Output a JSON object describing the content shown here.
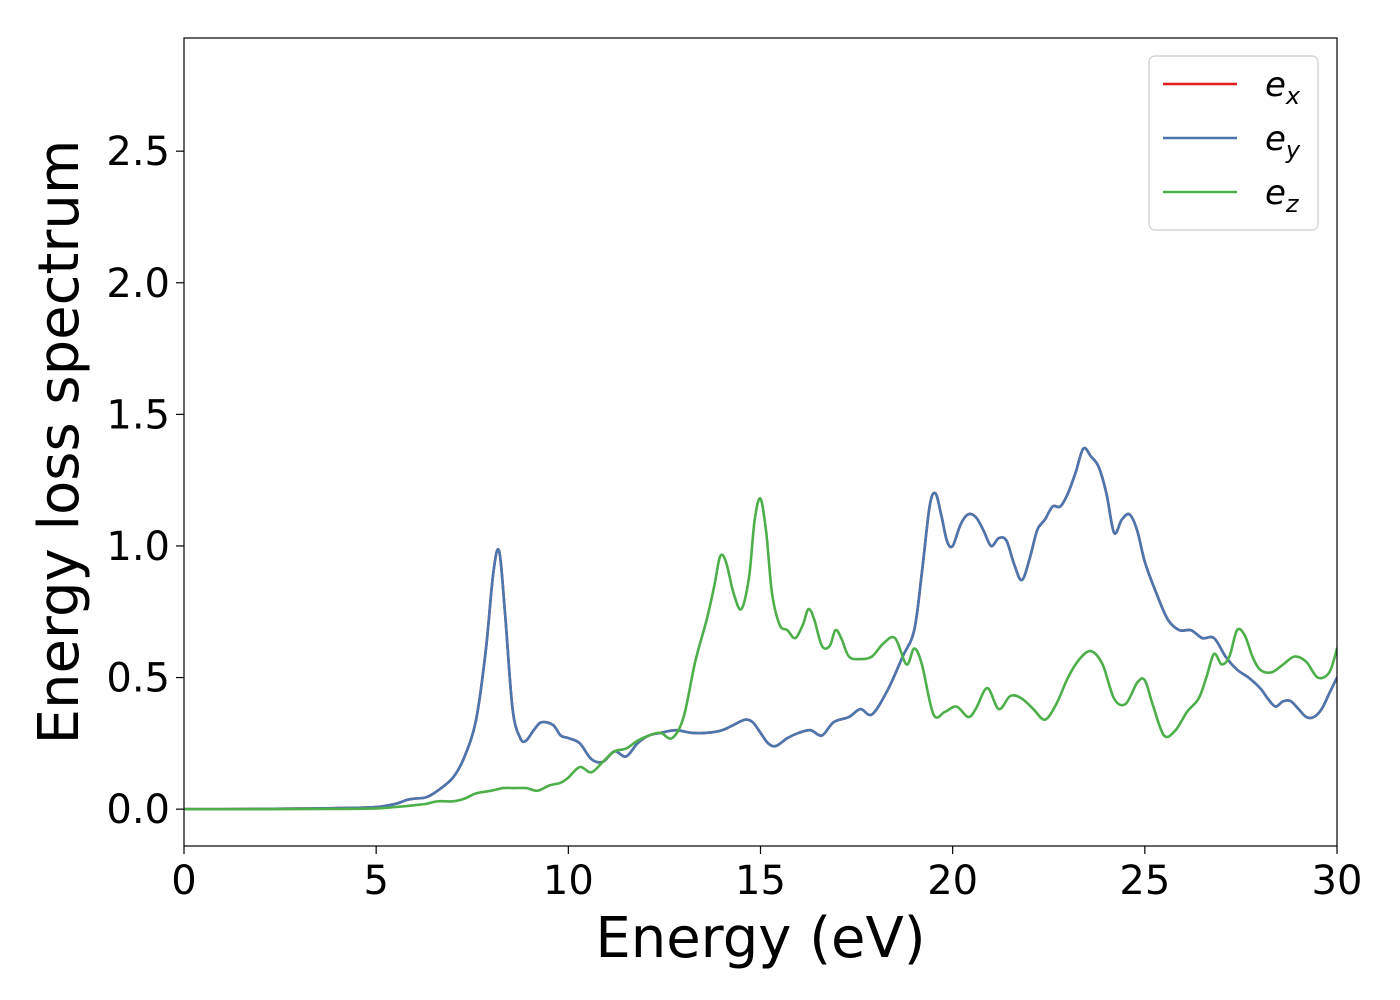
{
  "chart_data": {
    "type": "line",
    "title": "",
    "xlabel": "Energy (eV)",
    "ylabel": "Energy loss spectrum",
    "xlim": [
      0,
      30
    ],
    "ylim": [
      -0.14,
      2.93
    ],
    "xticks": [
      0,
      5,
      10,
      15,
      20,
      25,
      30
    ],
    "yticks": [
      0.0,
      0.5,
      1.0,
      1.5,
      2.0,
      2.5
    ],
    "xtick_labels": [
      "0",
      "5",
      "10",
      "15",
      "20",
      "25",
      "30"
    ],
    "ytick_labels": [
      "0.0",
      "0.5",
      "1.0",
      "1.5",
      "2.0",
      "2.5"
    ],
    "grid": false,
    "legend_position": "top-right",
    "series": [
      {
        "name": "e_x",
        "legend_base": "e",
        "legend_sub": "x",
        "color": "#e41a1c",
        "x": [
          0,
          1,
          2,
          3,
          4,
          5,
          5.5,
          5.8,
          6.0,
          6.3,
          6.6,
          7.0,
          7.3,
          7.6,
          7.85,
          8.05,
          8.2,
          8.35,
          8.55,
          8.75,
          8.9,
          9.1,
          9.3,
          9.6,
          9.8,
          10.0,
          10.3,
          10.6,
          10.9,
          11.2,
          11.5,
          11.8,
          12.1,
          12.4,
          12.8,
          13.2,
          13.6,
          14.0,
          14.3,
          14.6,
          14.8,
          15.0,
          15.2,
          15.4,
          15.7,
          16.0,
          16.3,
          16.6,
          16.9,
          17.3,
          17.6,
          17.9,
          18.3,
          18.7,
          19.0,
          19.2,
          19.4,
          19.55,
          19.7,
          19.85,
          20.0,
          20.2,
          20.4,
          20.6,
          20.8,
          21.0,
          21.2,
          21.4,
          21.6,
          21.8,
          22.0,
          22.2,
          22.4,
          22.6,
          22.8,
          23.0,
          23.2,
          23.4,
          23.6,
          23.8,
          24.0,
          24.2,
          24.4,
          24.6,
          24.8,
          25.0,
          25.3,
          25.6,
          25.9,
          26.2,
          26.5,
          26.8,
          27.1,
          27.4,
          27.7,
          28.0,
          28.2,
          28.4,
          28.6,
          28.8,
          29.0,
          29.2,
          29.4,
          29.6,
          29.8,
          30.0
        ],
        "y": [
          0,
          0.0,
          0.001,
          0.002,
          0.004,
          0.008,
          0.02,
          0.035,
          0.04,
          0.045,
          0.07,
          0.12,
          0.2,
          0.34,
          0.6,
          0.9,
          0.98,
          0.75,
          0.38,
          0.27,
          0.26,
          0.3,
          0.33,
          0.32,
          0.28,
          0.27,
          0.25,
          0.19,
          0.18,
          0.22,
          0.2,
          0.25,
          0.28,
          0.29,
          0.3,
          0.29,
          0.29,
          0.3,
          0.32,
          0.34,
          0.33,
          0.29,
          0.25,
          0.24,
          0.27,
          0.29,
          0.3,
          0.28,
          0.33,
          0.35,
          0.38,
          0.36,
          0.45,
          0.58,
          0.68,
          0.9,
          1.15,
          1.2,
          1.12,
          1.02,
          1.0,
          1.08,
          1.12,
          1.11,
          1.06,
          1.0,
          1.03,
          1.02,
          0.93,
          0.87,
          0.95,
          1.06,
          1.1,
          1.15,
          1.15,
          1.2,
          1.28,
          1.37,
          1.34,
          1.3,
          1.2,
          1.05,
          1.1,
          1.12,
          1.06,
          0.94,
          0.82,
          0.72,
          0.68,
          0.68,
          0.65,
          0.65,
          0.58,
          0.53,
          0.5,
          0.46,
          0.42,
          0.39,
          0.41,
          0.41,
          0.38,
          0.35,
          0.35,
          0.38,
          0.44,
          0.5
        ]
      },
      {
        "name": "e_y",
        "legend_base": "e",
        "legend_sub": "y",
        "color": "#4a77b0",
        "x": [
          0,
          1,
          2,
          3,
          4,
          5,
          5.5,
          5.8,
          6.0,
          6.3,
          6.6,
          7.0,
          7.3,
          7.6,
          7.85,
          8.05,
          8.2,
          8.35,
          8.55,
          8.75,
          8.9,
          9.1,
          9.3,
          9.6,
          9.8,
          10.0,
          10.3,
          10.6,
          10.9,
          11.2,
          11.5,
          11.8,
          12.1,
          12.4,
          12.8,
          13.2,
          13.6,
          14.0,
          14.3,
          14.6,
          14.8,
          15.0,
          15.2,
          15.4,
          15.7,
          16.0,
          16.3,
          16.6,
          16.9,
          17.3,
          17.6,
          17.9,
          18.3,
          18.7,
          19.0,
          19.2,
          19.4,
          19.55,
          19.7,
          19.85,
          20.0,
          20.2,
          20.4,
          20.6,
          20.8,
          21.0,
          21.2,
          21.4,
          21.6,
          21.8,
          22.0,
          22.2,
          22.4,
          22.6,
          22.8,
          23.0,
          23.2,
          23.4,
          23.6,
          23.8,
          24.0,
          24.2,
          24.4,
          24.6,
          24.8,
          25.0,
          25.3,
          25.6,
          25.9,
          26.2,
          26.5,
          26.8,
          27.1,
          27.4,
          27.7,
          28.0,
          28.2,
          28.4,
          28.6,
          28.8,
          29.0,
          29.2,
          29.4,
          29.6,
          29.8,
          30.0
        ],
        "y": [
          0,
          0.0,
          0.001,
          0.002,
          0.004,
          0.008,
          0.02,
          0.035,
          0.04,
          0.045,
          0.07,
          0.12,
          0.2,
          0.34,
          0.6,
          0.9,
          0.98,
          0.75,
          0.38,
          0.27,
          0.26,
          0.3,
          0.33,
          0.32,
          0.28,
          0.27,
          0.25,
          0.19,
          0.18,
          0.22,
          0.2,
          0.25,
          0.28,
          0.29,
          0.3,
          0.29,
          0.29,
          0.3,
          0.32,
          0.34,
          0.33,
          0.29,
          0.25,
          0.24,
          0.27,
          0.29,
          0.3,
          0.28,
          0.33,
          0.35,
          0.38,
          0.36,
          0.45,
          0.58,
          0.68,
          0.9,
          1.15,
          1.2,
          1.12,
          1.02,
          1.0,
          1.08,
          1.12,
          1.11,
          1.06,
          1.0,
          1.03,
          1.02,
          0.93,
          0.87,
          0.95,
          1.06,
          1.1,
          1.15,
          1.15,
          1.2,
          1.28,
          1.37,
          1.34,
          1.3,
          1.2,
          1.05,
          1.1,
          1.12,
          1.06,
          0.94,
          0.82,
          0.72,
          0.68,
          0.68,
          0.65,
          0.65,
          0.58,
          0.53,
          0.5,
          0.46,
          0.42,
          0.39,
          0.41,
          0.41,
          0.38,
          0.35,
          0.35,
          0.38,
          0.44,
          0.5
        ]
      },
      {
        "name": "e_z",
        "legend_base": "e",
        "legend_sub": "z",
        "color": "#4daf4a",
        "x": [
          0,
          2,
          4,
          5,
          5.5,
          6.0,
          6.3,
          6.6,
          7.0,
          7.3,
          7.6,
          8.0,
          8.3,
          8.6,
          8.9,
          9.2,
          9.5,
          9.8,
          10.0,
          10.3,
          10.6,
          10.9,
          11.2,
          11.5,
          11.8,
          12.1,
          12.4,
          12.7,
          13.0,
          13.3,
          13.6,
          13.8,
          13.95,
          14.1,
          14.3,
          14.5,
          14.7,
          14.85,
          15.0,
          15.15,
          15.3,
          15.5,
          15.7,
          15.9,
          16.1,
          16.25,
          16.4,
          16.6,
          16.8,
          16.95,
          17.1,
          17.3,
          17.6,
          17.9,
          18.2,
          18.5,
          18.8,
          19.0,
          19.2,
          19.5,
          19.8,
          20.1,
          20.4,
          20.6,
          20.9,
          21.2,
          21.5,
          21.8,
          22.1,
          22.4,
          22.7,
          23.0,
          23.3,
          23.6,
          23.9,
          24.2,
          24.5,
          24.8,
          25.0,
          25.2,
          25.5,
          25.8,
          26.1,
          26.4,
          26.6,
          26.8,
          27.0,
          27.2,
          27.4,
          27.6,
          27.8,
          28.0,
          28.3,
          28.6,
          28.9,
          29.2,
          29.5,
          29.8,
          30.0
        ],
        "y": [
          0,
          0.0,
          0.001,
          0.003,
          0.008,
          0.015,
          0.02,
          0.03,
          0.03,
          0.04,
          0.06,
          0.07,
          0.08,
          0.08,
          0.08,
          0.07,
          0.09,
          0.1,
          0.12,
          0.16,
          0.14,
          0.18,
          0.22,
          0.23,
          0.26,
          0.28,
          0.29,
          0.27,
          0.35,
          0.56,
          0.72,
          0.85,
          0.96,
          0.94,
          0.82,
          0.76,
          0.88,
          1.1,
          1.18,
          1.05,
          0.82,
          0.7,
          0.68,
          0.65,
          0.7,
          0.76,
          0.72,
          0.62,
          0.62,
          0.68,
          0.65,
          0.58,
          0.57,
          0.58,
          0.63,
          0.65,
          0.55,
          0.61,
          0.55,
          0.36,
          0.37,
          0.39,
          0.35,
          0.38,
          0.46,
          0.38,
          0.43,
          0.42,
          0.38,
          0.34,
          0.4,
          0.5,
          0.57,
          0.6,
          0.55,
          0.42,
          0.4,
          0.48,
          0.49,
          0.4,
          0.28,
          0.3,
          0.37,
          0.42,
          0.5,
          0.59,
          0.55,
          0.58,
          0.68,
          0.66,
          0.58,
          0.53,
          0.52,
          0.55,
          0.58,
          0.56,
          0.5,
          0.52,
          0.61
        ]
      }
    ]
  }
}
